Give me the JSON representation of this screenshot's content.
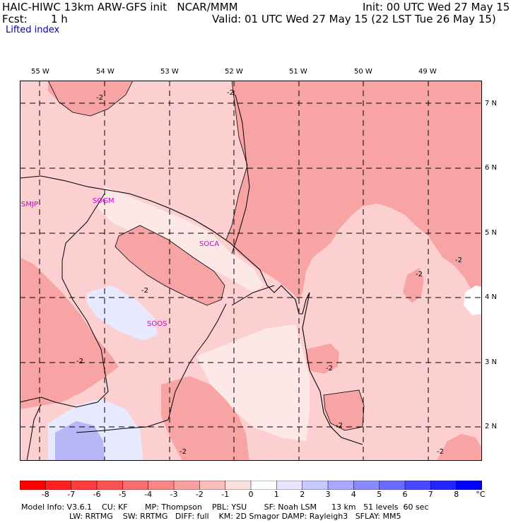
{
  "header": {
    "title_left": "HAIC-HIWC 13km ARW-GFS init   NCAR/MMM",
    "init": "Init: 00 UTC Wed 27 May 15",
    "fcst_label": "Fcst:",
    "fcst_value": "1 h",
    "valid": "Valid: 01 UTC Wed 27 May 15 (22 LST Tue 26 May 15)",
    "field": "Lifted index"
  },
  "map": {
    "lon_labels": [
      "55 W",
      "54 W",
      "53 W",
      "52 W",
      "51 W",
      "50 W",
      "49 W"
    ],
    "lat_labels": [
      "7 N",
      "6 N",
      "5 N",
      "4 N",
      "3 N",
      "2 N"
    ],
    "stations": [
      "SMJP",
      "SOGM",
      "SOCA",
      "SOOS"
    ],
    "contour_label": "-2"
  },
  "colorbar": {
    "unit": "°C",
    "ticks": [
      "-8",
      "-7",
      "-6",
      "-5",
      "-4",
      "-3",
      "-2",
      "-1",
      "0",
      "1",
      "2",
      "3",
      "4",
      "5",
      "6",
      "7",
      "8"
    ],
    "colors": [
      "#ff0000",
      "#ff2020",
      "#ff3b3b",
      "#fb5353",
      "#f86d6d",
      "#f78686",
      "#f8a0a0",
      "#fbbcbc",
      "#fce0e0",
      "#ffffff",
      "#e6e6ff",
      "#c8c8ff",
      "#a8a8ff",
      "#8a8aff",
      "#6b6bff",
      "#4848ff",
      "#2525ff",
      "#0000ff"
    ]
  },
  "footer": {
    "line1": "Model Info: V3.6.1    CU: KF       MP: Thompson    PBL: YSU       SF: Noah LSM      13 km   51 levels  60 sec",
    "line2": "LW: RRTMG    SW: RRTMG   DIFF: full    KM: 2D Smagor DAMP: Rayleigh3   SFLAY: MM5"
  }
}
